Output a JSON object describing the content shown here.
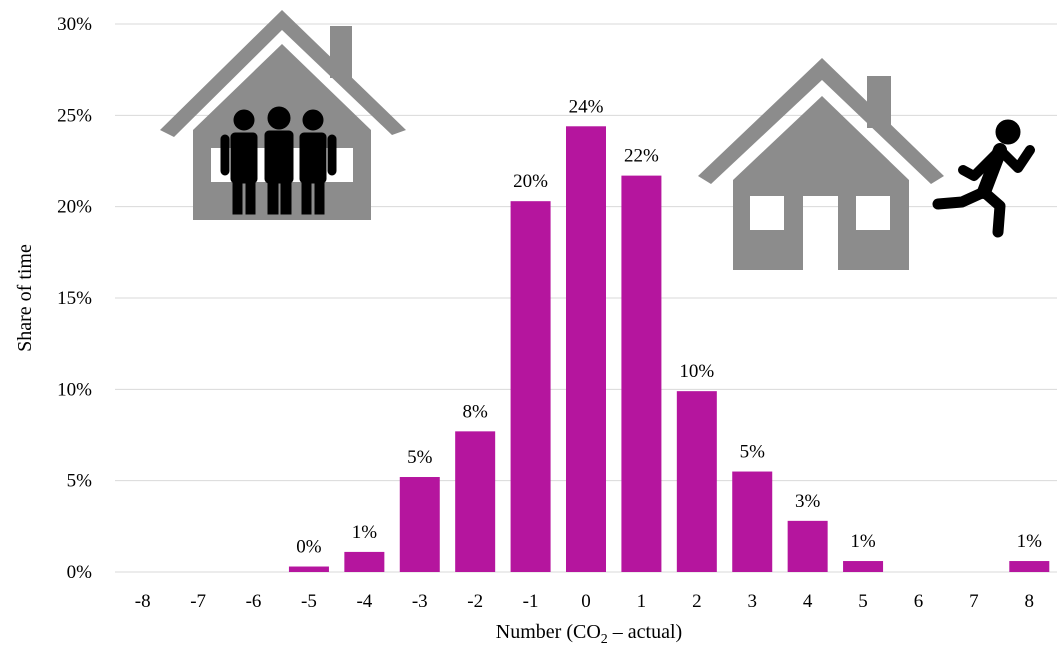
{
  "colors": {
    "bar": "#b5159e",
    "grid": "#d9d9d9",
    "house": "#8c8c8c",
    "person": "#000000"
  },
  "icons": {
    "left": "house-with-family-icon",
    "right": "house-with-person-running-away-icon"
  },
  "chart_data": {
    "type": "bar",
    "categories": [
      "-8",
      "-7",
      "-6",
      "-5",
      "-4",
      "-3",
      "-2",
      "-1",
      "0",
      "1",
      "2",
      "3",
      "4",
      "5",
      "6",
      "7",
      "8"
    ],
    "values": [
      0,
      0,
      0,
      0.3,
      1.1,
      5.2,
      7.7,
      20.3,
      24.4,
      21.7,
      9.9,
      5.5,
      2.8,
      0.6,
      0,
      0,
      0.6
    ],
    "data_labels": [
      "",
      "",
      "",
      "0%",
      "1%",
      "5%",
      "8%",
      "20%",
      "24%",
      "22%",
      "10%",
      "5%",
      "3%",
      "1%",
      "",
      "",
      "1%"
    ],
    "ylim": [
      0,
      30
    ],
    "yticks": [
      "0%",
      "5%",
      "10%",
      "15%",
      "20%",
      "25%",
      "30%"
    ],
    "ylabel": "Share of time",
    "xlabel": {
      "prefix": "Number (CO",
      "subscript": "2",
      "suffix": " – actual)"
    },
    "grid": true,
    "legend": "none"
  }
}
